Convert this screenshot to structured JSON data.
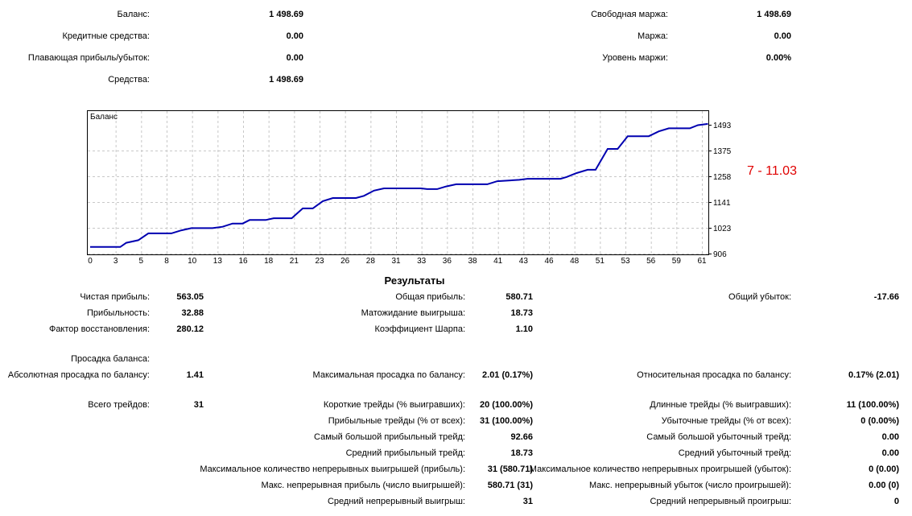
{
  "account": {
    "balance_label": "Баланс:",
    "balance": "1 498.69",
    "credit_label": "Кредитные средства:",
    "credit": "0.00",
    "floating_label": "Плавающая прибыль/убыток:",
    "floating": "0.00",
    "equity_label": "Средства:",
    "equity": "1 498.69",
    "free_margin_label": "Свободная маржа:",
    "free_margin": "1 498.69",
    "margin_label": "Маржа:",
    "margin": "0.00",
    "margin_level_label": "Уровень маржи:",
    "margin_level": "0.00%"
  },
  "annotation": {
    "text": "7 - 11.03",
    "color": "#e00000"
  },
  "chart_data": {
    "type": "line",
    "title": "Баланс",
    "line_color": "#0000b0",
    "x_ticks": [
      "0",
      "3",
      "5",
      "8",
      "10",
      "13",
      "16",
      "18",
      "21",
      "23",
      "26",
      "28",
      "31",
      "33",
      "36",
      "38",
      "41",
      "43",
      "46",
      "48",
      "51",
      "53",
      "56",
      "59",
      "61"
    ],
    "y_ticks": [
      "1493",
      "1375",
      "1258",
      "1141",
      "1023",
      "906"
    ],
    "ylim": [
      906,
      1555
    ],
    "xlim": [
      0,
      61.6
    ],
    "series": [
      {
        "name": "Баланс",
        "x": [
          0,
          3.0,
          3.6,
          4.8,
          5.8,
          8.1,
          9.1,
          10.1,
          12.2,
          13.2,
          14.2,
          15.2,
          15.9,
          17.5,
          18.3,
          20.1,
          21.2,
          22.2,
          23.2,
          24.2,
          26.5,
          27.3,
          28.3,
          29.3,
          33.0,
          33.6,
          34.6,
          35.5,
          36.5,
          39.6,
          40.6,
          41.4,
          42.8,
          43.6,
          46.9,
          47.5,
          48.5,
          49.6,
          50.4,
          51.6,
          52.6,
          53.6,
          55.7,
          56.7,
          57.7,
          59.8,
          60.6,
          61.6
        ],
        "y": [
          936,
          936,
          955,
          967,
          998,
          998,
          1012,
          1022,
          1022,
          1028,
          1043,
          1043,
          1059,
          1059,
          1067,
          1067,
          1112,
          1112,
          1145,
          1159,
          1159,
          1169,
          1193,
          1203,
          1203,
          1200,
          1200,
          1212,
          1222,
          1222,
          1236,
          1238,
          1242,
          1247,
          1247,
          1255,
          1273,
          1288,
          1288,
          1383,
          1383,
          1441,
          1441,
          1463,
          1477,
          1477,
          1491,
          1497
        ]
      }
    ]
  },
  "results": {
    "title": "Результаты",
    "net_profit_label": "Чистая прибыль:",
    "net_profit": "563.05",
    "gross_profit_label": "Общая прибыль:",
    "gross_profit": "580.71",
    "gross_loss_label": "Общий убыток:",
    "gross_loss": "-17.66",
    "profit_factor_label": "Прибыльность:",
    "profit_factor": "32.88",
    "expected_payoff_label": "Матожидание выигрыша:",
    "expected_payoff": "18.73",
    "recovery_label": "Фактор восстановления:",
    "recovery": "280.12",
    "sharpe_label": "Коэффициент Шарпа:",
    "sharpe": "1.10",
    "drawdown_header": "Просадка баланса:",
    "abs_dd_label": "Абсолютная просадка по балансу:",
    "abs_dd": "1.41",
    "max_dd_label": "Максимальная просадка по балансу:",
    "max_dd": "2.01 (0.17%)",
    "rel_dd_label": "Относительная просадка по балансу:",
    "rel_dd": "0.17% (2.01)",
    "total_label": "Всего трейдов:",
    "total": "31",
    "short_label": "Короткие трейды (% выигравших):",
    "short": "20 (100.00%)",
    "long_label": "Длинные трейды (% выигравших):",
    "long": "11 (100.00%)",
    "profit_trades_label": "Прибыльные трейды (% от всех):",
    "profit_trades": "31 (100.00%)",
    "loss_trades_label": "Убыточные трейды (% от всех):",
    "loss_trades": "0 (0.00%)",
    "largest_profit_label": "Самый большой прибыльный трейд:",
    "largest_profit": "92.66",
    "largest_loss_label": "Самый большой убыточный трейд:",
    "largest_loss": "0.00",
    "avg_profit_label": "Средний прибыльный трейд:",
    "avg_profit": "18.73",
    "avg_loss_label": "Средний убыточный трейд:",
    "avg_loss": "0.00",
    "max_cons_wins_label": "Максимальное количество непрерывных выигрышей (прибыль):",
    "max_cons_wins": "31 (580.71)",
    "max_cons_losses_label": "Максимальное количество непрерывных проигрышей (убыток):",
    "max_cons_losses": "0 (0.00)",
    "max_cons_profit_label": "Макс. непрерывная прибыль (число выигрышей):",
    "max_cons_profit": "580.71 (31)",
    "max_cons_loss_label": "Макс. непрерывный убыток (число проигрышей):",
    "max_cons_loss": "0.00 (0)",
    "avg_cons_wins_label": "Средний непрерывный выигрыш:",
    "avg_cons_wins": "31",
    "avg_cons_losses_label": "Средний непрерывный проигрыш:",
    "avg_cons_losses": "0"
  }
}
